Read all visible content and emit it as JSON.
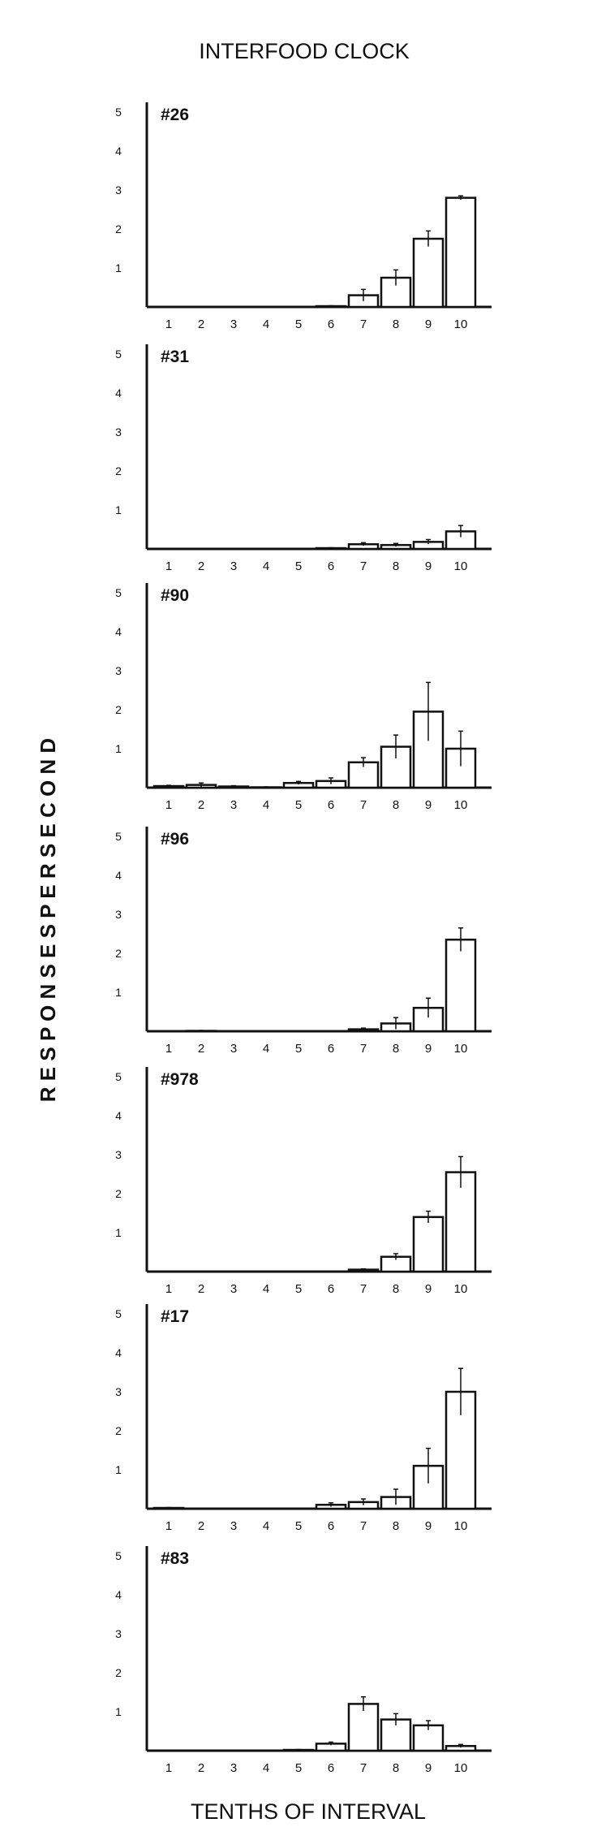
{
  "figure": {
    "title": "INTERFOOD CLOCK",
    "ylabel": "R E S P O N S E S   P E R   S E C O N D",
    "xlabel": "TENTHS OF INTERVAL"
  },
  "chart_data": [
    {
      "type": "bar",
      "label": "#26",
      "categories": [
        "1",
        "2",
        "3",
        "4",
        "5",
        "6",
        "7",
        "8",
        "9",
        "10"
      ],
      "y_ticks": [
        "1",
        "2",
        "3",
        "4",
        "5"
      ],
      "ylim": [
        0,
        5
      ],
      "values": [
        0,
        0,
        0,
        0,
        0,
        0.02,
        0.3,
        0.75,
        1.75,
        2.8
      ],
      "errors": [
        0,
        0,
        0,
        0,
        0,
        0.01,
        0.15,
        0.2,
        0.2,
        0.05
      ]
    },
    {
      "type": "bar",
      "label": "#31",
      "categories": [
        "1",
        "2",
        "3",
        "4",
        "5",
        "6",
        "7",
        "8",
        "9",
        "10"
      ],
      "y_ticks": [
        "1",
        "2",
        "3",
        "4",
        "5"
      ],
      "ylim": [
        0,
        5
      ],
      "values": [
        0,
        0,
        0,
        0,
        0,
        0.02,
        0.12,
        0.1,
        0.18,
        0.45
      ],
      "errors": [
        0,
        0,
        0,
        0,
        0,
        0.01,
        0.04,
        0.04,
        0.06,
        0.15
      ]
    },
    {
      "type": "bar",
      "label": "#90",
      "categories": [
        "1",
        "2",
        "3",
        "4",
        "5",
        "6",
        "7",
        "8",
        "9",
        "10"
      ],
      "y_ticks": [
        "1",
        "2",
        "3",
        "4",
        "5"
      ],
      "ylim": [
        0,
        5
      ],
      "values": [
        0.04,
        0.07,
        0.03,
        0.01,
        0.12,
        0.17,
        0.65,
        1.05,
        1.95,
        1.0
      ],
      "errors": [
        0.02,
        0.05,
        0.02,
        0.01,
        0.04,
        0.08,
        0.12,
        0.3,
        0.75,
        0.45
      ]
    },
    {
      "type": "bar",
      "label": "#96",
      "categories": [
        "1",
        "2",
        "3",
        "4",
        "5",
        "6",
        "7",
        "8",
        "9",
        "10"
      ],
      "y_ticks": [
        "1",
        "2",
        "3",
        "4",
        "5"
      ],
      "ylim": [
        0,
        5
      ],
      "values": [
        0,
        0.01,
        0,
        0,
        0,
        0,
        0.05,
        0.2,
        0.6,
        2.35
      ],
      "errors": [
        0,
        0.01,
        0,
        0,
        0,
        0,
        0.03,
        0.15,
        0.25,
        0.3
      ]
    },
    {
      "type": "bar",
      "label": "#978",
      "categories": [
        "1",
        "2",
        "3",
        "4",
        "5",
        "6",
        "7",
        "8",
        "9",
        "10"
      ],
      "y_ticks": [
        "1",
        "2",
        "3",
        "4",
        "5"
      ],
      "ylim": [
        0,
        5
      ],
      "values": [
        0,
        0,
        0,
        0,
        0,
        0,
        0.05,
        0.38,
        1.4,
        2.55
      ],
      "errors": [
        0,
        0,
        0,
        0,
        0,
        0,
        0.02,
        0.08,
        0.15,
        0.4
      ]
    },
    {
      "type": "bar",
      "label": "#17",
      "categories": [
        "1",
        "2",
        "3",
        "4",
        "5",
        "6",
        "7",
        "8",
        "9",
        "10"
      ],
      "y_ticks": [
        "1",
        "2",
        "3",
        "4",
        "5"
      ],
      "ylim": [
        0,
        5
      ],
      "values": [
        0.02,
        0,
        0,
        0,
        0,
        0.1,
        0.17,
        0.3,
        1.1,
        3.0
      ],
      "errors": [
        0.01,
        0,
        0,
        0,
        0,
        0.05,
        0.08,
        0.2,
        0.45,
        0.6
      ]
    },
    {
      "type": "bar",
      "label": "#83",
      "categories": [
        "1",
        "2",
        "3",
        "4",
        "5",
        "6",
        "7",
        "8",
        "9",
        "10"
      ],
      "y_ticks": [
        "1",
        "2",
        "3",
        "4",
        "5"
      ],
      "ylim": [
        0,
        5
      ],
      "values": [
        0,
        0,
        0,
        0,
        0.02,
        0.18,
        1.2,
        0.8,
        0.65,
        0.12
      ],
      "errors": [
        0,
        0,
        0,
        0,
        0.01,
        0.04,
        0.18,
        0.15,
        0.12,
        0.04
      ]
    }
  ]
}
